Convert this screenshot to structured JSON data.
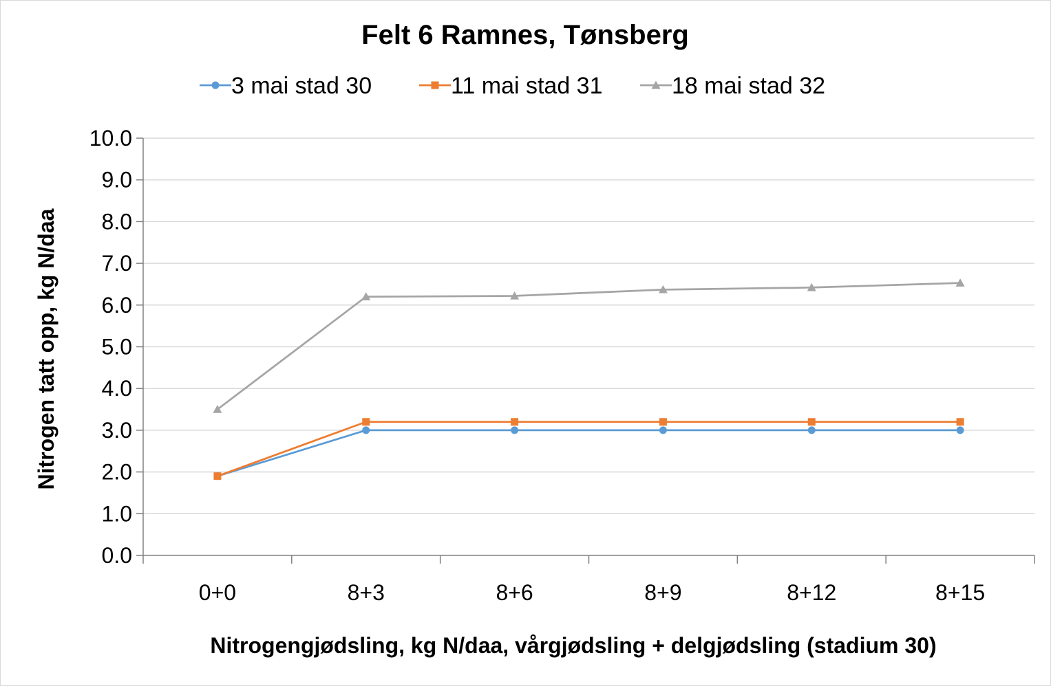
{
  "chart_data": {
    "type": "line",
    "title": "Felt 6 Ramnes, Tønsberg",
    "xlabel": "Nitrogengjødsling, kg N/daa, vårgjødsling + delgjødsling (stadium 30)",
    "ylabel": "Nitrogen tatt opp, kg N/daa",
    "categories": [
      "0+0",
      "8+3",
      "8+6",
      "8+9",
      "8+12",
      "8+15"
    ],
    "ylim": [
      0,
      10
    ],
    "yticks": [
      "0.0",
      "1.0",
      "2.0",
      "3.0",
      "4.0",
      "5.0",
      "6.0",
      "7.0",
      "8.0",
      "9.0",
      "10.0"
    ],
    "grid": true,
    "legend_position": "top",
    "series": [
      {
        "name": "3 mai stad 30",
        "color": "#5b9bd5",
        "marker": "circle",
        "values": [
          1.9,
          3.0,
          3.0,
          3.0,
          3.0,
          3.0
        ]
      },
      {
        "name": "11 mai stad 31",
        "color": "#ed7d31",
        "marker": "square",
        "values": [
          1.9,
          3.2,
          3.2,
          3.2,
          3.2,
          3.2
        ]
      },
      {
        "name": "18 mai stad 32",
        "color": "#a5a5a5",
        "marker": "triangle",
        "values": [
          3.5,
          6.2,
          6.22,
          6.37,
          6.42,
          6.53
        ]
      }
    ]
  }
}
